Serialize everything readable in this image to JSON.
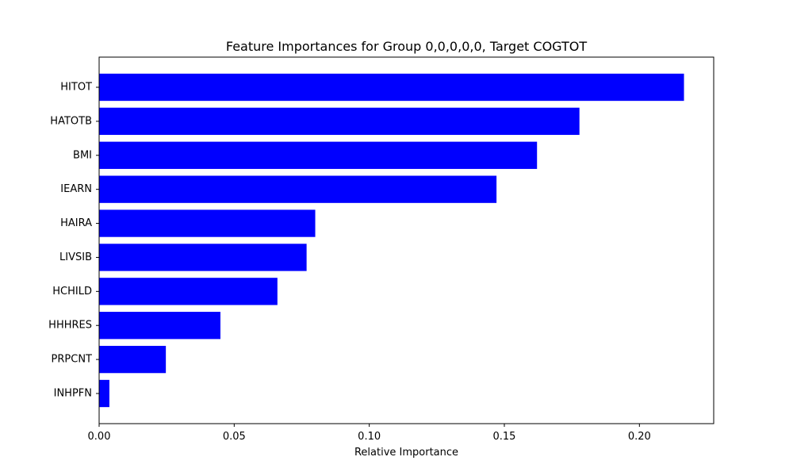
{
  "chart_data": {
    "type": "bar",
    "orientation": "horizontal",
    "title": "Feature Importances for Group 0,0,0,0,0, Target COGTOT",
    "xlabel": "Relative Importance",
    "ylabel": "",
    "categories": [
      "HITOT",
      "HATOTB",
      "BMI",
      "IEARN",
      "HAIRA",
      "LIVSIB",
      "HCHILD",
      "HHHRES",
      "PRPCNT",
      "INHPFN"
    ],
    "values": [
      0.2165,
      0.1778,
      0.1621,
      0.1471,
      0.08,
      0.0768,
      0.066,
      0.0449,
      0.0247,
      0.0038
    ],
    "xlim": [
      0,
      0.2275
    ],
    "x_ticks": [
      "0.00",
      "0.05",
      "0.10",
      "0.15",
      "0.20"
    ],
    "x_tick_values": [
      0,
      0.05,
      0.1,
      0.15,
      0.2
    ],
    "bar_color": "#0000ff",
    "grid": false,
    "legend": "none"
  }
}
